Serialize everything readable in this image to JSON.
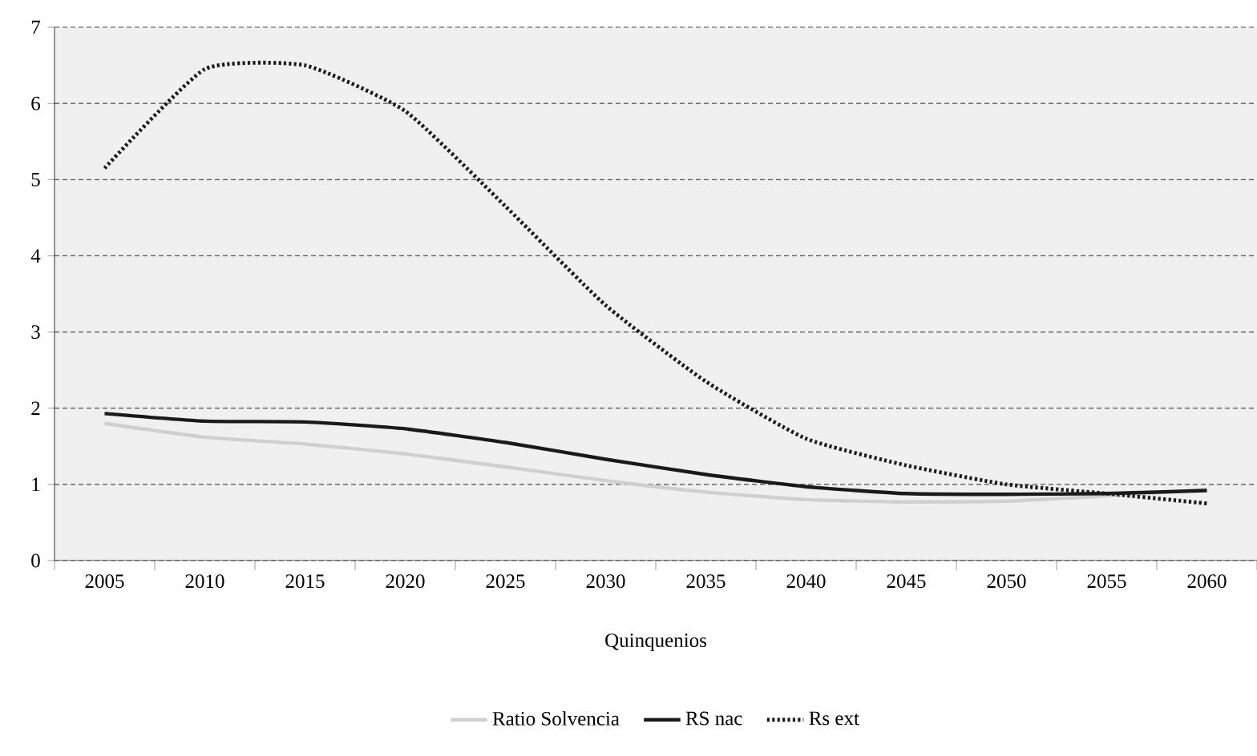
{
  "chart_data": {
    "type": "line",
    "xlabel": "Quinquenios",
    "categories": [
      "2005",
      "2010",
      "2015",
      "2020",
      "2025",
      "2030",
      "2035",
      "2040",
      "2045",
      "2050",
      "2055",
      "2060"
    ],
    "series": [
      {
        "name": "Ratio Solvencia",
        "color": "#d0d0d0",
        "line_style": "solid",
        "values": [
          1.8,
          1.62,
          1.53,
          1.4,
          1.23,
          1.05,
          0.9,
          0.8,
          0.77,
          0.78,
          0.85,
          0.93
        ]
      },
      {
        "name": "RS nac",
        "color": "#1a1a1a",
        "line_style": "solid",
        "values": [
          1.93,
          1.83,
          1.82,
          1.73,
          1.55,
          1.33,
          1.13,
          0.97,
          0.88,
          0.87,
          0.88,
          0.92
        ]
      },
      {
        "name": "Rs ext",
        "color": "#1a1a1a",
        "line_style": "dotted",
        "values": [
          5.15,
          6.45,
          6.5,
          5.9,
          4.65,
          3.35,
          2.35,
          1.6,
          1.25,
          1.0,
          0.88,
          0.75
        ]
      }
    ],
    "ylim": [
      0,
      7
    ],
    "yticks": [
      0,
      1,
      2,
      3,
      4,
      5,
      6,
      7
    ],
    "grid": "y",
    "legend": "bottom",
    "marker": "none"
  }
}
